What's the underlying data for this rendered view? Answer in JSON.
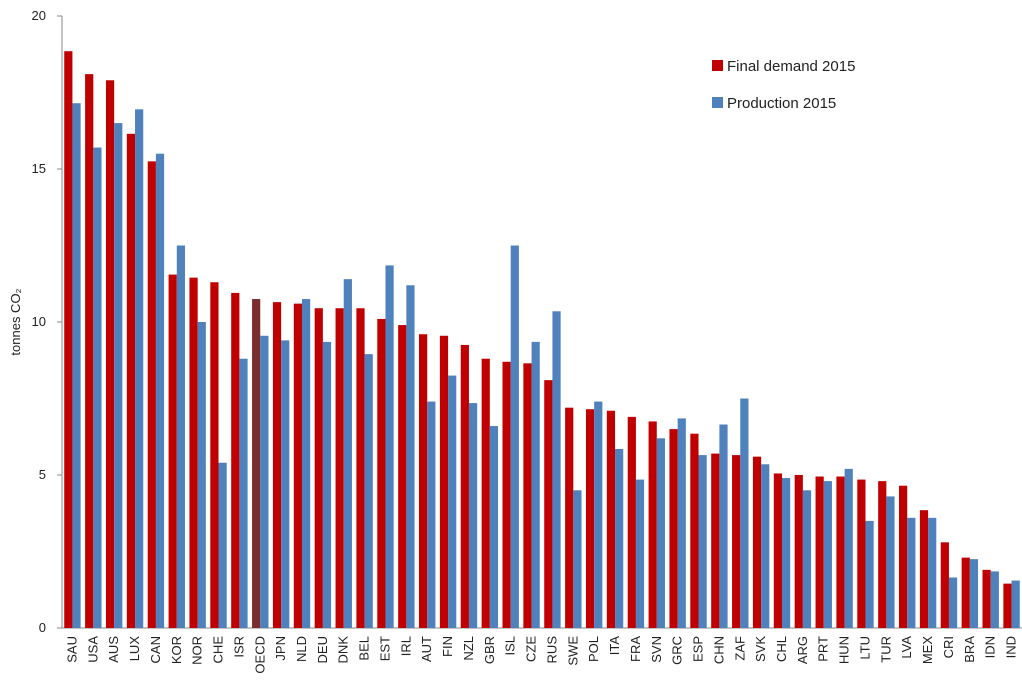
{
  "chart_data": {
    "type": "bar",
    "y_label": "tonnes CO₂",
    "categories": [
      "SAU",
      "USA",
      "AUS",
      "LUX",
      "CAN",
      "KOR",
      "NOR",
      "CHE",
      "ISR",
      "OECD",
      "JPN",
      "NLD",
      "DEU",
      "DNK",
      "BEL",
      "EST",
      "IRL",
      "AUT",
      "FIN",
      "NZL",
      "GBR",
      "ISL",
      "CZE",
      "RUS",
      "SWE",
      "POL",
      "ITA",
      "FRA",
      "SVN",
      "GRC",
      "ESP",
      "CHN",
      "ZAF",
      "SVK",
      "CHL",
      "ARG",
      "PRT",
      "HUN",
      "LTU",
      "TUR",
      "LVA",
      "MEX",
      "CRI",
      "BRA",
      "IDN",
      "IND"
    ],
    "series": [
      {
        "name": "Final demand 2015",
        "color": "#c00000",
        "point_colors": [
          "#c00000",
          "#c00000",
          "#c00000",
          "#c00000",
          "#c00000",
          "#c00000",
          "#c00000",
          "#c00000",
          "#c00000",
          "#7b2c2c",
          "#c00000",
          "#c00000",
          "#c00000",
          "#c00000",
          "#c00000",
          "#c00000",
          "#c00000",
          "#c00000",
          "#c00000",
          "#c00000",
          "#c00000",
          "#c00000",
          "#c00000",
          "#c00000",
          "#c00000",
          "#c00000",
          "#c00000",
          "#c00000",
          "#c00000",
          "#c00000",
          "#c00000",
          "#c00000",
          "#c00000",
          "#c00000",
          "#c00000",
          "#c00000",
          "#c00000",
          "#c00000",
          "#c00000",
          "#c00000",
          "#c00000",
          "#c00000",
          "#c00000",
          "#c00000",
          "#c00000",
          "#c00000"
        ],
        "values": [
          18.85,
          18.1,
          17.9,
          16.15,
          15.25,
          11.55,
          11.45,
          11.3,
          10.95,
          10.75,
          10.65,
          10.6,
          10.45,
          10.45,
          10.45,
          10.1,
          9.9,
          9.6,
          9.55,
          9.25,
          8.8,
          8.7,
          8.65,
          8.1,
          7.2,
          7.15,
          7.1,
          6.9,
          6.75,
          6.5,
          6.35,
          5.7,
          5.65,
          5.6,
          5.05,
          5.0,
          4.95,
          4.95,
          4.85,
          4.8,
          4.65,
          3.85,
          2.8,
          2.3,
          1.9,
          1.45
        ]
      },
      {
        "name": "Production 2015",
        "color": "#4f81bd",
        "values": [
          17.15,
          15.7,
          16.5,
          16.95,
          15.5,
          12.5,
          10.0,
          5.4,
          8.8,
          9.55,
          9.4,
          10.75,
          9.35,
          11.4,
          8.95,
          11.85,
          11.2,
          7.4,
          8.25,
          7.35,
          6.6,
          12.5,
          9.35,
          10.35,
          4.5,
          7.4,
          5.85,
          4.85,
          6.2,
          6.85,
          5.65,
          6.65,
          7.5,
          5.35,
          4.9,
          4.5,
          4.8,
          5.2,
          3.5,
          4.3,
          3.6,
          3.6,
          1.65,
          2.25,
          1.85,
          1.55
        ]
      }
    ],
    "ylim": [
      0,
      20
    ],
    "yticks": [
      0,
      5,
      10,
      15,
      20
    ],
    "grid": false,
    "legend": "top-right"
  }
}
